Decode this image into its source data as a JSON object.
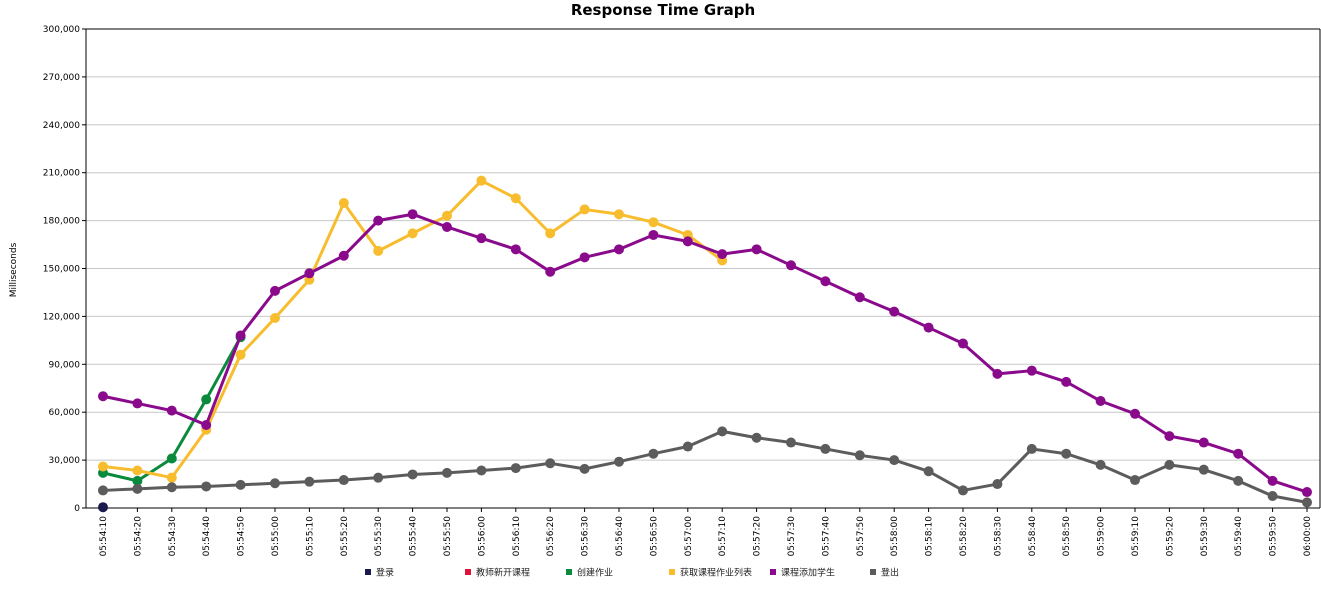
{
  "chart_data": {
    "type": "line",
    "title": "Response Time Graph",
    "xlabel": "",
    "ylabel": "Milliseconds",
    "ylim": [
      0,
      300000
    ],
    "yticks": [
      0,
      30000,
      60000,
      90000,
      120000,
      150000,
      180000,
      210000,
      240000,
      270000,
      300000
    ],
    "ytick_labels": [
      "0",
      "30,000",
      "60,000",
      "90,000",
      "120,000",
      "150,000",
      "180,000",
      "210,000",
      "240,000",
      "270,000",
      "300,000"
    ],
    "grid": true,
    "legend_position": "bottom",
    "x": [
      "05:54:10",
      "05:54:20",
      "05:54:30",
      "05:54:40",
      "05:54:50",
      "05:55:00",
      "05:55:10",
      "05:55:20",
      "05:55:30",
      "05:55:40",
      "05:55:50",
      "05:56:00",
      "05:56:10",
      "05:56:20",
      "05:56:30",
      "05:56:40",
      "05:56:50",
      "05:57:00",
      "05:57:10",
      "05:57:20",
      "05:57:30",
      "05:57:40",
      "05:57:50",
      "05:58:00",
      "05:58:10",
      "05:58:20",
      "05:58:30",
      "05:58:40",
      "05:58:50",
      "05:59:00",
      "05:59:10",
      "05:59:20",
      "05:59:30",
      "05:59:40",
      "05:59:50",
      "06:00:00"
    ],
    "series": [
      {
        "name": "登录",
        "color": "#1a1a4d",
        "values": [
          500,
          null,
          null,
          null,
          null,
          null,
          null,
          null,
          null,
          null,
          null,
          null,
          null,
          null,
          null,
          null,
          null,
          null,
          null,
          null,
          null,
          null,
          null,
          null,
          null,
          null,
          null,
          null,
          null,
          null,
          null,
          null,
          null,
          null,
          null,
          null
        ]
      },
      {
        "name": "教师新开课程",
        "color": "#e0103a",
        "values": [
          null,
          null,
          null,
          null,
          null,
          null,
          null,
          null,
          null,
          null,
          null,
          null,
          null,
          null,
          null,
          null,
          null,
          null,
          null,
          null,
          null,
          null,
          null,
          null,
          null,
          null,
          null,
          null,
          null,
          null,
          null,
          null,
          null,
          null,
          null,
          null
        ]
      },
      {
        "name": "创建作业",
        "color": "#0a8a3c",
        "values": [
          22000,
          17000,
          31000,
          68000,
          107000,
          null,
          null,
          null,
          null,
          null,
          null,
          null,
          null,
          null,
          null,
          null,
          null,
          null,
          null,
          null,
          null,
          null,
          null,
          null,
          null,
          null,
          null,
          null,
          null,
          null,
          null,
          null,
          null,
          null,
          null,
          null
        ]
      },
      {
        "name": "获取课程作业列表",
        "color": "#f7bd2e",
        "values": [
          26000,
          23500,
          19000,
          49000,
          96000,
          119000,
          143000,
          191000,
          161000,
          172000,
          183000,
          205000,
          194000,
          172000,
          187000,
          184000,
          179000,
          171000,
          155000,
          null,
          null,
          null,
          null,
          null,
          null,
          null,
          null,
          null,
          null,
          null,
          null,
          null,
          null,
          null,
          null,
          null
        ]
      },
      {
        "name": "课程添加学生",
        "color": "#8a0a8c",
        "values": [
          70000,
          65500,
          61000,
          52000,
          108000,
          136000,
          147000,
          158000,
          180000,
          184000,
          176000,
          169000,
          162000,
          148000,
          157000,
          162000,
          171000,
          167000,
          159000,
          162000,
          152000,
          142000,
          132000,
          123000,
          113000,
          103000,
          84000,
          86000,
          79000,
          67000,
          59000,
          45000,
          41000,
          34000,
          17000,
          10000
        ]
      },
      {
        "name": "登出",
        "color": "#5c5c5c",
        "values": [
          11000,
          12000,
          13000,
          13500,
          14500,
          15500,
          16500,
          17500,
          19000,
          21000,
          22000,
          23500,
          25000,
          28000,
          24500,
          29000,
          34000,
          38500,
          48000,
          44000,
          41000,
          37000,
          33000,
          30000,
          23000,
          11000,
          15000,
          37000,
          34000,
          27000,
          17500,
          27000,
          24000,
          17000,
          7500,
          3500
        ]
      }
    ]
  }
}
